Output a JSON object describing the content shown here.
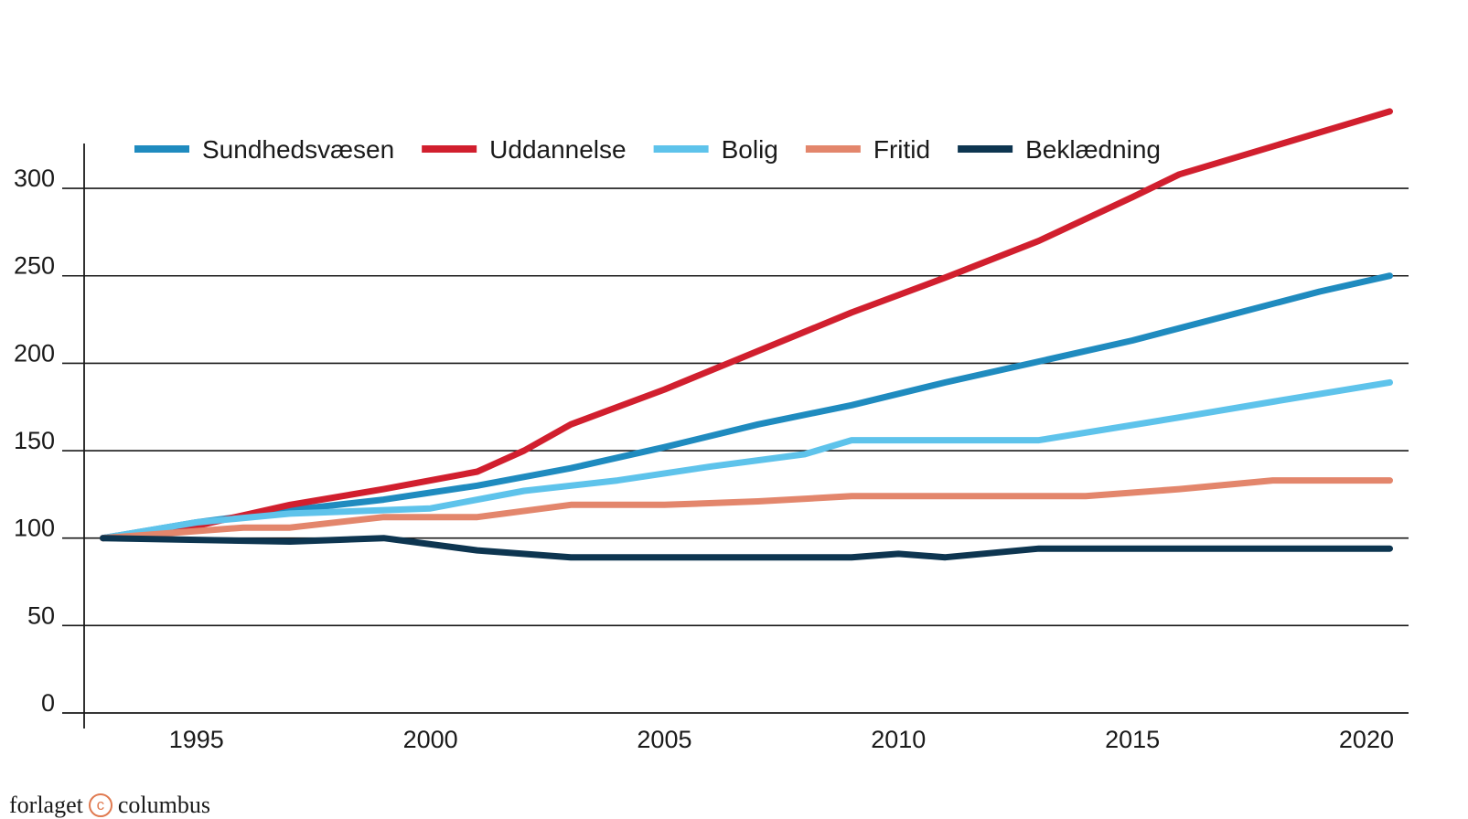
{
  "publisher": {
    "before": "forlaget",
    "mark": "c",
    "after": "columbus"
  },
  "colors": {
    "axis": "#1a1a1a",
    "grid": "#1a1a1a"
  },
  "chart_data": {
    "type": "line",
    "title": "",
    "xlabel": "",
    "ylabel": "",
    "xlim": [
      1992.6,
      2020.9
    ],
    "ylim": [
      0,
      345
    ],
    "x_ticks": [
      1995,
      2000,
      2005,
      2010,
      2015,
      2020
    ],
    "y_ticks": [
      0,
      50,
      100,
      150,
      200,
      250,
      300
    ],
    "grid": "horizontal",
    "legend_position": "top",
    "series": [
      {
        "name": "Sundhedsvæsen",
        "color": "#1f8bbf",
        "x": [
          1993,
          1995,
          1997,
          1999,
          2001,
          2003,
          2005,
          2007,
          2009,
          2011,
          2013,
          2015,
          2017,
          2019,
          2020.5
        ],
        "y": [
          100,
          109,
          116,
          122,
          130,
          140,
          152,
          165,
          176,
          189,
          201,
          213,
          227,
          241,
          250
        ]
      },
      {
        "name": "Uddannelse",
        "color": "#d11f2e",
        "x": [
          1993,
          1995,
          1997,
          1999,
          2001,
          2002,
          2003,
          2005,
          2007,
          2009,
          2011,
          2013,
          2015,
          2016,
          2018,
          2020.5
        ],
        "y": [
          100,
          107,
          119,
          128,
          138,
          150,
          165,
          185,
          207,
          229,
          249,
          270,
          295,
          308,
          324,
          344
        ]
      },
      {
        "name": "Bolig",
        "color": "#5ec3eb",
        "x": [
          1993,
          1995,
          1997,
          1999,
          2000,
          2002,
          2004,
          2006,
          2008,
          2009,
          2011,
          2013,
          2016,
          2018,
          2020.5
        ],
        "y": [
          100,
          109,
          114,
          116,
          117,
          127,
          133,
          141,
          148,
          156,
          156,
          156,
          169,
          178,
          189
        ]
      },
      {
        "name": "Fritid",
        "color": "#e3866c",
        "x": [
          1993,
          1996,
          1997,
          1999,
          2001,
          2003,
          2005,
          2007,
          2009,
          2011,
          2014,
          2016,
          2018,
          2020.5
        ],
        "y": [
          100,
          106,
          106,
          112,
          112,
          119,
          119,
          121,
          124,
          124,
          124,
          128,
          133,
          133
        ]
      },
      {
        "name": "Beklædning",
        "color": "#0d3550",
        "x": [
          1993,
          1995,
          1997,
          1999,
          2001,
          2003,
          2005,
          2007,
          2009,
          2010,
          2011,
          2013,
          2016,
          2018,
          2020.5
        ],
        "y": [
          100,
          99,
          98,
          100,
          93,
          89,
          89,
          89,
          89,
          91,
          89,
          94,
          94,
          94,
          94
        ]
      }
    ]
  }
}
